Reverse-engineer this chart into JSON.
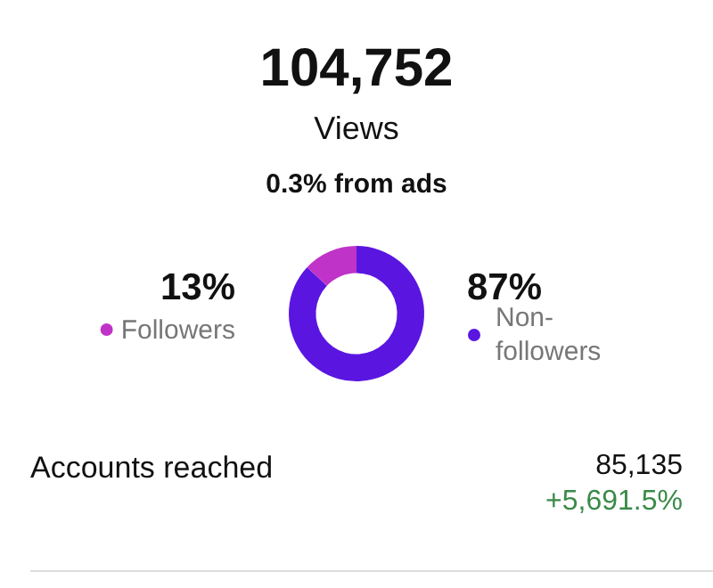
{
  "chart_data": {
    "type": "donut",
    "title": "104,752",
    "subtitle": "Views",
    "categories": [
      "Non-followers",
      "Followers"
    ],
    "values": [
      87,
      13
    ],
    "colors": [
      "#5a16e0",
      "#c033c8"
    ],
    "value_labels": [
      "87%",
      "13%"
    ],
    "legend": "right",
    "annotations": [
      "0.3% from ads",
      "Accounts reached",
      "85,135",
      "+5,691.5%"
    ]
  }
}
